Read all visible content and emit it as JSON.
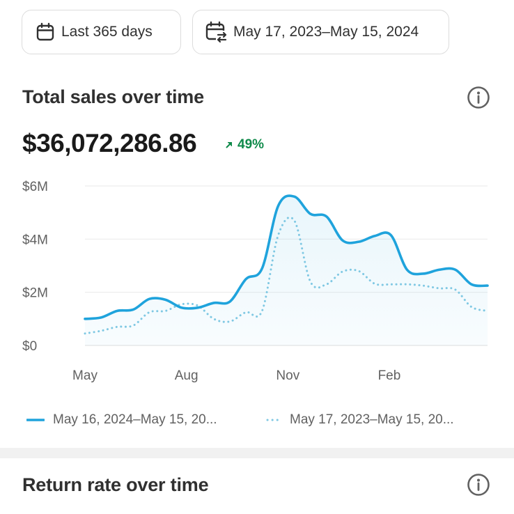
{
  "filters": {
    "range_label": "Last 365 days",
    "compare_label": "May 17, 2023–May 15, 2024",
    "range_icon": "calendar-icon",
    "compare_icon": "calendar-compare-icon"
  },
  "sales_card": {
    "title": "Total sales over time",
    "total": "$36,072,286.86",
    "delta": "49%",
    "delta_direction": "up",
    "delta_color": "#0f8a4a",
    "info_icon": "info-icon"
  },
  "chart_data": {
    "type": "line",
    "title": "",
    "xlabel": "",
    "ylabel": "",
    "x_tick_labels": [
      "May",
      "Aug",
      "Nov",
      "Feb"
    ],
    "y_tick_labels": [
      "$6M",
      "$4M",
      "$2M",
      "$0"
    ],
    "y_ticks": [
      6,
      4,
      2,
      0
    ],
    "ylim": [
      0,
      6
    ],
    "y_unit": "$M",
    "grid": true,
    "legend_position": "bottom",
    "series": [
      {
        "name": "May 16, 2024–May 15, 20...",
        "style": "solid",
        "color": "#1fa3dc",
        "fill": true,
        "values": [
          1.0,
          1.05,
          1.3,
          1.35,
          1.75,
          1.72,
          1.42,
          1.42,
          1.6,
          1.65,
          2.5,
          2.9,
          5.25,
          5.6,
          4.95,
          4.85,
          3.95,
          3.9,
          4.12,
          4.15,
          2.85,
          2.7,
          2.85,
          2.85,
          2.3,
          2.25
        ]
      },
      {
        "name": "May 17, 2023–May 15, 20...",
        "style": "dotted",
        "color": "#7fc8e3",
        "fill": false,
        "values": [
          0.45,
          0.55,
          0.7,
          0.75,
          1.25,
          1.3,
          1.55,
          1.5,
          1.0,
          0.9,
          1.25,
          1.3,
          4.15,
          4.7,
          2.4,
          2.3,
          2.78,
          2.8,
          2.32,
          2.3,
          2.3,
          2.25,
          2.15,
          2.1,
          1.45,
          1.3
        ]
      }
    ]
  },
  "return_card": {
    "title": "Return rate over time",
    "info_icon": "info-icon"
  }
}
